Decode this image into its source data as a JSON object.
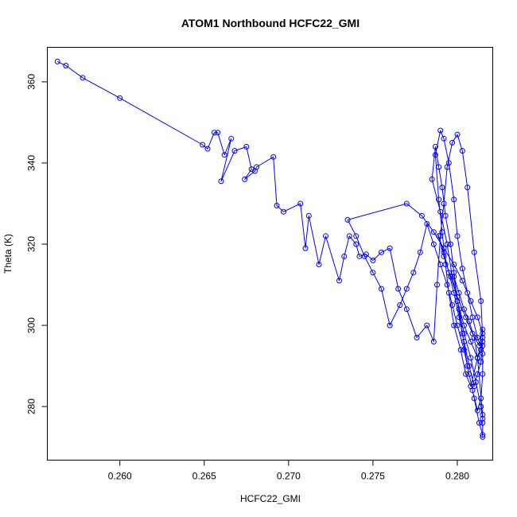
{
  "chart_data": {
    "type": "line",
    "title": "ATOM1 Northbound HCFC22_GMI",
    "xlabel": "HCFC22_GMI",
    "ylabel": "Theta (K)",
    "xlim": [
      0.2557,
      0.2821
    ],
    "ylim": [
      266.8,
      368.5
    ],
    "xticks": [
      0.26,
      0.265,
      0.27,
      0.275,
      0.28
    ],
    "xtick_labels": [
      "0.260",
      "0.265",
      "0.270",
      "0.275",
      "0.280"
    ],
    "yticks": [
      280,
      300,
      320,
      340,
      360
    ],
    "ytick_labels": [
      "280",
      "300",
      "320",
      "340",
      "360"
    ],
    "grid": false,
    "markers": "open-circle",
    "color": "#0000ff",
    "series": [
      {
        "x": [
          0.2563,
          0.2568,
          0.2578,
          0.26,
          0.2649,
          0.2652,
          0.2656,
          0.2658,
          0.2662,
          0.2666,
          0.266,
          0.2668,
          0.2675,
          0.2678,
          0.2674,
          0.268,
          0.2681,
          0.2691,
          0.2693,
          0.2697,
          0.2707,
          0.271,
          0.2712,
          0.2718,
          0.2722,
          0.273,
          0.2733,
          0.2736,
          0.274,
          0.2742,
          0.2746,
          0.275,
          0.2755,
          0.276,
          0.2765,
          0.277,
          0.2776,
          0.2782,
          0.2786,
          0.2788,
          0.279,
          0.2792,
          0.2794,
          0.2797,
          0.28,
          0.2803,
          0.2806,
          0.281,
          0.2814,
          0.2815,
          0.2812,
          0.2808,
          0.2805,
          0.2802,
          0.2798,
          0.2795,
          0.2793,
          0.2791,
          0.2789,
          0.2787,
          0.279,
          0.2792,
          0.2795,
          0.2798,
          0.28,
          0.2803,
          0.2806,
          0.2809,
          0.2812,
          0.2815,
          0.2815,
          0.2814,
          0.2812,
          0.2809,
          0.2806,
          0.2803,
          0.28,
          0.2798,
          0.2796,
          0.2793,
          0.2791,
          0.2789,
          0.2787,
          0.2785,
          0.279,
          0.2794,
          0.2797,
          0.2801,
          0.2804,
          0.2808,
          0.2811,
          0.2814,
          0.2815,
          0.2815,
          0.2813,
          0.281,
          0.2807,
          0.2804,
          0.28,
          0.2797,
          0.2794,
          0.279,
          0.2786,
          0.2782,
          0.2778,
          0.2774,
          0.277,
          0.2766,
          0.276,
          0.2755,
          0.275,
          0.2745,
          0.274,
          0.2735,
          0.277,
          0.2779,
          0.2786,
          0.2792,
          0.2798,
          0.2803,
          0.2808,
          0.2812,
          0.2815,
          0.2815,
          0.2814,
          0.2812,
          0.281,
          0.2807,
          0.2804,
          0.2801,
          0.2798,
          0.2795,
          0.2792,
          0.2789,
          0.2792,
          0.2796,
          0.28,
          0.2805,
          0.2809,
          0.2813,
          0.2815,
          0.2815,
          0.2814,
          0.2812,
          0.281,
          0.2807,
          0.2804,
          0.2801,
          0.2798,
          0.28,
          0.2804,
          0.2808,
          0.2812,
          0.2815,
          0.2815,
          0.2815
        ],
        "y": [
          365,
          364,
          361,
          356,
          344.5,
          343.5,
          347.5,
          347.5,
          342.0,
          346.0,
          335.5,
          343.0,
          344.0,
          338.5,
          336.0,
          338.0,
          339.0,
          341.5,
          329.5,
          328.0,
          330.0,
          319.0,
          327.0,
          315.0,
          322.0,
          311.0,
          317.0,
          322.0,
          320.0,
          317.0,
          317.5,
          316.0,
          318.0,
          319.0,
          309.0,
          304.0,
          297.0,
          300.0,
          296.0,
          310.0,
          322.0,
          330.0,
          339.0,
          345.0,
          347.0,
          343.0,
          334.0,
          318.0,
          306.0,
          297.0,
          292.0,
          285.0,
          288.0,
          294.0,
          300.0,
          308.0,
          315.0,
          323.0,
          331.0,
          342.0,
          348.0,
          346.0,
          340.0,
          331.0,
          322.0,
          314.0,
          308.0,
          302.0,
          297.0,
          293.0,
          288.0,
          282.0,
          279.0,
          284.0,
          290.0,
          298.0,
          306.0,
          313.0,
          320.0,
          327.0,
          334.0,
          339.0,
          344.0,
          336.0,
          328.0,
          320.0,
          312.0,
          304.0,
          298.0,
          292.0,
          286.0,
          280.0,
          277.0,
          273.0,
          276.0,
          282.0,
          288.0,
          294.0,
          300.0,
          305.0,
          310.0,
          315.0,
          320.0,
          325.0,
          318.0,
          313.0,
          309.0,
          305.0,
          300.0,
          309.0,
          313.0,
          317.0,
          322.0,
          326.0,
          330.0,
          327.0,
          323.0,
          319.0,
          315.0,
          311.0,
          306.0,
          302.0,
          298.0,
          295.0,
          291.0,
          288.0,
          285.0,
          290.0,
          296.0,
          302.0,
          308.0,
          313.0,
          318.0,
          322.0,
          317.0,
          312.0,
          307.0,
          302.0,
          298.0,
          295.0,
          299.0,
          296.0,
          294.0,
          292.0,
          297.0,
          301.0,
          304.0,
          308.0,
          312.0,
          306.0,
          300.0,
          296.0,
          292.0,
          278.0,
          276.0,
          272.5
        ]
      }
    ]
  }
}
